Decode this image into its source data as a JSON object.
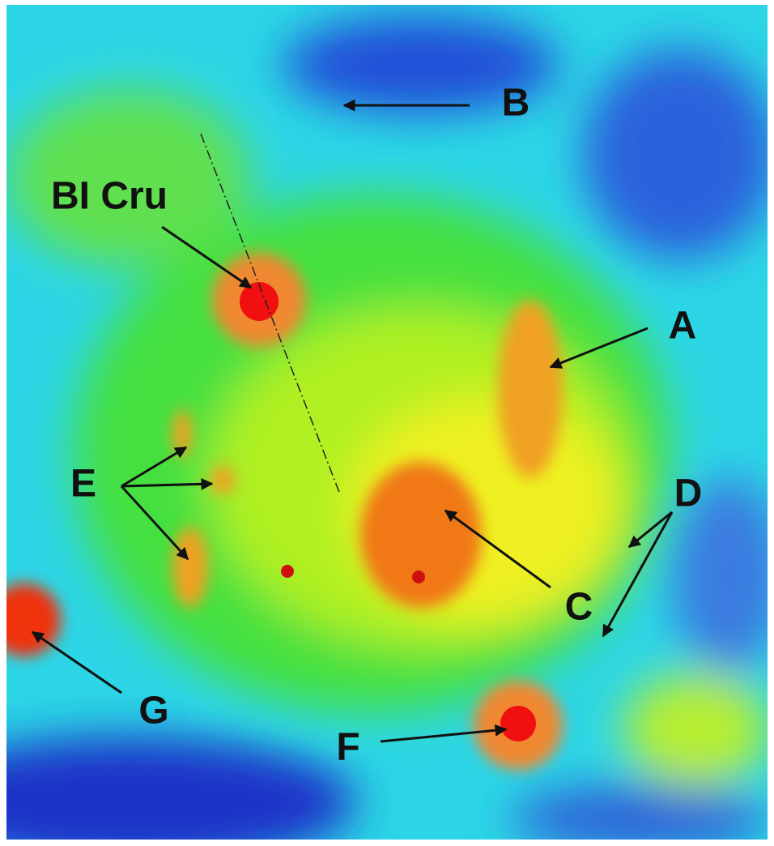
{
  "labels": [
    {
      "text": "B"
    },
    {
      "text": "BI Cru"
    },
    {
      "text": "A"
    },
    {
      "text": "E"
    },
    {
      "text": "D"
    },
    {
      "text": "C"
    },
    {
      "text": "G"
    },
    {
      "text": "F"
    }
  ]
}
